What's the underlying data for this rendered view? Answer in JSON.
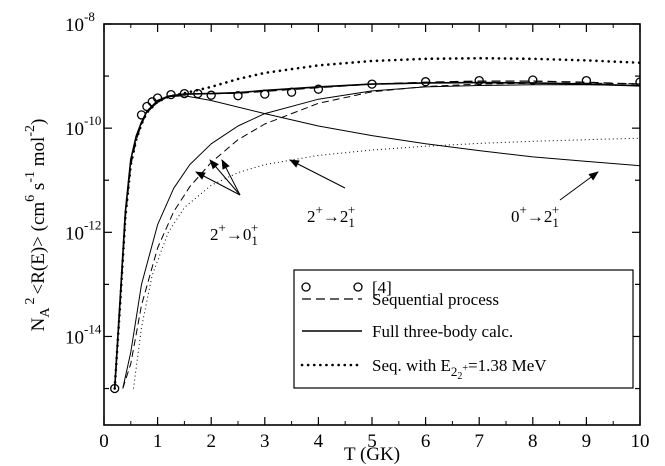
{
  "chart_data": {
    "type": "line",
    "xlabel": "T (GK)",
    "ylabel_parts": {
      "n": "N",
      "a": "A",
      "sq": "2",
      "rate": "<R(E)> (cm",
      "six": "6",
      "s": " s",
      "m1": "-1",
      "mol": " mol",
      "m2": "-2",
      "close": ")"
    },
    "xlim": [
      0,
      10
    ],
    "ylim_log10": [
      -15.7,
      -8
    ],
    "x_ticks": [
      0,
      1,
      2,
      3,
      4,
      5,
      6,
      7,
      8,
      9,
      10
    ],
    "x_tick_labels": [
      "0",
      "1",
      "2",
      "3",
      "4",
      "5",
      "6",
      "7",
      "8",
      "9",
      "10"
    ],
    "y_tick_labels": [
      {
        "value": -8,
        "base": "10",
        "exp": "-8"
      },
      {
        "value": -10,
        "base": "10",
        "exp": "-10"
      },
      {
        "value": -12,
        "base": "10",
        "exp": "-12"
      },
      {
        "value": -14,
        "base": "10",
        "exp": "-14"
      }
    ],
    "grid": false,
    "legend_position": "lower-right",
    "legend": [
      {
        "label": "[4]",
        "style": "circles"
      },
      {
        "label": "Sequential process",
        "style": "dashed"
      },
      {
        "label": "Full three-body calc.",
        "style": "solid"
      },
      {
        "label_prefix": "Seq. with E",
        "label_sub": "2",
        "label_subsub": "2",
        "label_subsup": "+",
        "label_suffix": "=1.38 MeV",
        "style": "dotted"
      }
    ],
    "series": [
      {
        "name": "[4]",
        "style": "circles",
        "x": [
          0.2,
          0.7,
          0.8,
          0.9,
          1.0,
          1.25,
          1.5,
          1.75,
          2.0,
          2.5,
          3.0,
          3.5,
          4.0,
          5.0,
          6.0,
          7.0,
          8.0,
          9.0,
          10.0
        ],
        "y": [
          1e-15,
          1.8e-10,
          2.6e-10,
          3.2e-10,
          3.8e-10,
          4.4e-10,
          4.6e-10,
          4.6e-10,
          4.3e-10,
          4.2e-10,
          4.5e-10,
          4.9e-10,
          5.6e-10,
          7e-10,
          7.8e-10,
          8.2e-10,
          8.4e-10,
          8.2e-10,
          7.7e-10
        ]
      },
      {
        "name": "Sequential process",
        "style": "dashed",
        "x": [
          0.2,
          0.3,
          0.4,
          0.5,
          0.6,
          0.7,
          0.8,
          1.0,
          1.2,
          1.5,
          2.0,
          2.5,
          3.0,
          4.0,
          5.0,
          6.0,
          7.0,
          8.0,
          9.0,
          10.0
        ],
        "y": [
          1e-15,
          4e-14,
          2e-12,
          2e-11,
          6e-11,
          1.2e-10,
          2e-10,
          3.2e-10,
          4e-10,
          4.5e-10,
          4.6e-10,
          4.7e-10,
          5.1e-10,
          6e-10,
          7e-10,
          7.6e-10,
          8e-10,
          8e-10,
          7.6e-10,
          7e-10
        ]
      },
      {
        "name": "Full three-body calc.",
        "style": "solid",
        "x": [
          0.2,
          0.3,
          0.4,
          0.5,
          0.6,
          0.7,
          0.8,
          1.0,
          1.2,
          1.5,
          2.0,
          2.5,
          3.0,
          4.0,
          5.0,
          6.0,
          7.0,
          8.0,
          9.0,
          10.0
        ],
        "y": [
          1e-15,
          5e-14,
          2.5e-12,
          2.5e-11,
          7e-11,
          1.3e-10,
          2.1e-10,
          3.4e-10,
          4.1e-10,
          4.5e-10,
          4.6e-10,
          4.8e-10,
          5.3e-10,
          6.2e-10,
          7e-10,
          7.4e-10,
          7.5e-10,
          7.4e-10,
          7e-10,
          6.5e-10
        ]
      },
      {
        "name": "Seq. with E=1.38 MeV",
        "style": "dotted-thick",
        "x": [
          0.2,
          0.3,
          0.4,
          0.5,
          0.6,
          0.7,
          0.8,
          1.0,
          1.2,
          1.5,
          2.0,
          2.5,
          3.0,
          4.0,
          5.0,
          6.0,
          7.0,
          8.0,
          9.0,
          10.0
        ],
        "y": [
          1e-15,
          4e-14,
          2e-12,
          2e-11,
          6e-11,
          1.2e-10,
          2e-10,
          3.2e-10,
          4e-10,
          4.7e-10,
          6.2e-10,
          8.8e-10,
          1.15e-09,
          1.6e-09,
          1.95e-09,
          2.15e-09,
          2.2e-09,
          2.15e-09,
          2e-09,
          1.8e-09
        ]
      },
      {
        "name": "2+ -> 01+ (full)",
        "style": "solid-thin",
        "x": [
          0.2,
          0.3,
          0.4,
          0.5,
          0.6,
          0.7,
          0.8,
          1.0,
          1.2,
          1.5,
          2.0,
          3.0,
          4.0,
          5.0,
          6.0,
          7.0,
          8.0,
          9.0,
          10.0
        ],
        "y": [
          1e-15,
          5e-14,
          2.5e-12,
          2.5e-11,
          7e-11,
          1.3e-10,
          2.1e-10,
          3.3e-10,
          4e-10,
          4.2e-10,
          3.4e-10,
          1.9e-10,
          1.1e-10,
          7.2e-11,
          5e-11,
          3.7e-11,
          2.8e-11,
          2.3e-11,
          1.9e-11
        ]
      },
      {
        "name": "2+ -> 21+ (full)",
        "style": "solid-thin",
        "x": [
          0.35,
          0.5,
          0.7,
          1.0,
          1.3,
          1.6,
          2.0,
          2.5,
          3.0,
          4.0,
          5.0,
          6.0,
          7.0,
          8.0,
          9.0,
          10.0
        ],
        "y": [
          1e-15,
          5e-15,
          1e-13,
          1.4e-12,
          7e-12,
          2e-11,
          5e-11,
          1.1e-10,
          1.9e-10,
          3.6e-10,
          5.2e-10,
          6.2e-10,
          6.6e-10,
          6.8e-10,
          6.8e-10,
          6.6e-10
        ]
      },
      {
        "name": "2+ -> 21+ (sequential)",
        "style": "dashed-thin",
        "x": [
          0.35,
          0.5,
          0.7,
          1.0,
          1.3,
          1.6,
          2.0,
          2.5,
          3.0,
          4.0,
          5.0,
          6.0,
          7.0,
          8.0,
          9.0,
          10.0
        ],
        "y": [
          1e-15,
          3e-15,
          4e-14,
          5e-13,
          2.5e-12,
          7.5e-12,
          2.2e-11,
          6e-11,
          1.2e-10,
          3e-10,
          5e-10,
          6.3e-10,
          7e-10,
          7.3e-10,
          7.3e-10,
          7.1e-10
        ]
      },
      {
        "name": "0+ -> 21+",
        "style": "dotted-thin",
        "x": [
          0.55,
          0.7,
          0.9,
          1.2,
          1.5,
          2.0,
          2.5,
          3.0,
          4.0,
          5.0,
          6.0,
          7.0,
          8.0,
          9.0,
          10.0
        ],
        "y": [
          1e-15,
          1.5e-14,
          1.5e-13,
          1e-12,
          3e-12,
          8e-12,
          1.4e-11,
          2e-11,
          3e-11,
          3.8e-11,
          4.5e-11,
          5.1e-11,
          5.6e-11,
          6e-11,
          6.4e-11
        ]
      }
    ],
    "annotations": [
      {
        "id": "a1",
        "base": "2",
        "sup1": "+",
        "arrow": "→",
        "mid": "0",
        "sub": "1",
        "sup2": "+"
      },
      {
        "id": "a2",
        "base": "2",
        "sup1": "+",
        "arrow": "→",
        "mid": "2",
        "sub": "1",
        "sup2": "+"
      },
      {
        "id": "a3",
        "base": "0",
        "sup1": "+",
        "arrow": "→",
        "mid": "2",
        "sub": "1",
        "sup2": "+"
      }
    ]
  }
}
